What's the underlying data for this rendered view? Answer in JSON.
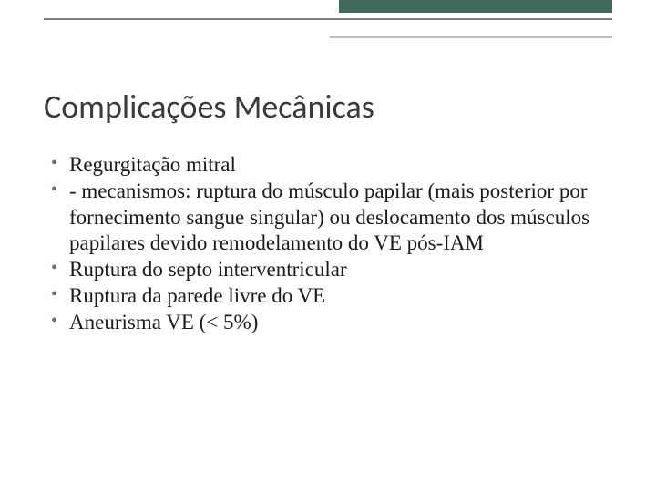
{
  "accent_color": "#406a5e",
  "title_color": "#3a3a3a",
  "body_color": "#1a1a1a",
  "title_fontsize": 36,
  "body_fontsize": 23,
  "slide": {
    "title": "Complicações Mecânicas",
    "bullets": [
      "Regurgitação mitral",
      "- mecanismos: ruptura do músculo papilar (mais posterior por fornecimento sangue singular) ou deslocamento dos músculos papilares devido remodelamento do VE pós-IAM",
      "Ruptura do septo interventricular",
      "Ruptura da parede livre do VE",
      "Aneurisma VE (< 5%)"
    ]
  }
}
